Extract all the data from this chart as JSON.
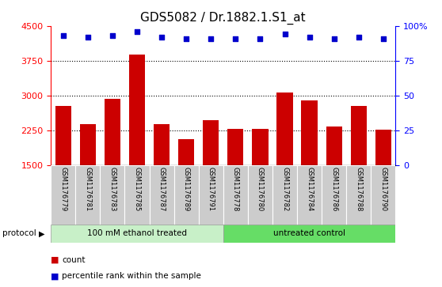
{
  "title": "GDS5082 / Dr.1882.1.S1_at",
  "samples": [
    "GSM1176779",
    "GSM1176781",
    "GSM1176783",
    "GSM1176785",
    "GSM1176787",
    "GSM1176789",
    "GSM1176791",
    "GSM1176778",
    "GSM1176780",
    "GSM1176782",
    "GSM1176784",
    "GSM1176786",
    "GSM1176788",
    "GSM1176790"
  ],
  "counts": [
    2780,
    2380,
    2920,
    3880,
    2380,
    2060,
    2460,
    2280,
    2280,
    3060,
    2900,
    2330,
    2770,
    2260
  ],
  "percentiles": [
    93,
    92,
    93,
    96,
    92,
    91,
    91,
    91,
    91,
    94,
    92,
    91,
    92,
    91
  ],
  "bar_color": "#cc0000",
  "dot_color": "#0000cc",
  "ylim_left": [
    1500,
    4500
  ],
  "ylim_right": [
    0,
    100
  ],
  "yticks_left": [
    1500,
    2250,
    3000,
    3750,
    4500
  ],
  "yticks_right": [
    0,
    25,
    50,
    75,
    100
  ],
  "group1_label": "100 mM ethanol treated",
  "group2_label": "untreated control",
  "group1_count": 7,
  "group2_count": 7,
  "protocol_label": "protocol",
  "legend_count": "count",
  "legend_percentile": "percentile rank within the sample",
  "bg_color": "#ffffff",
  "label_area_color": "#cccccc",
  "group1_color": "#c8f0c8",
  "group2_color": "#66dd66",
  "title_fontsize": 11,
  "tick_fontsize": 8,
  "label_fontsize": 8
}
